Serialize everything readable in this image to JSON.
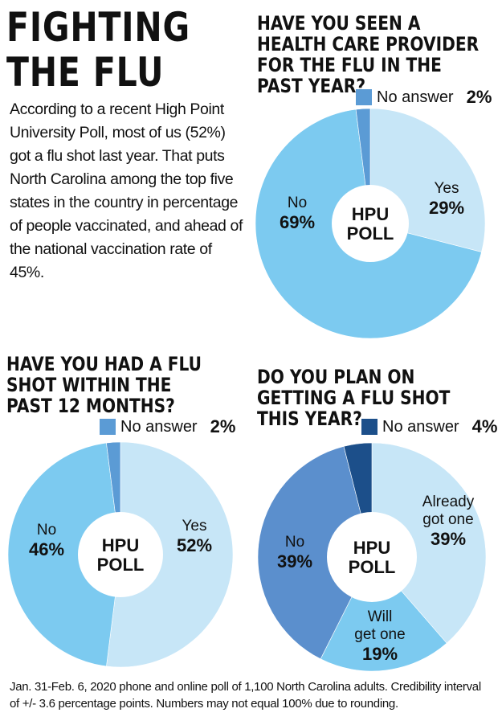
{
  "page": {
    "title": "FIGHTING THE FLU",
    "intro": "According to a recent High Point University Poll, most of us (52%) got a flu shot last year. That puts North Carolina among the top five states in the country in percentage of people vaccinated, and ahead of the national vaccination rate of 45%.",
    "footnote": "Jan. 31-Feb. 6, 2020 phone and online poll of 1,100 North Carolina adults. Credibility interval of +/- 3.6 percentage points. Numbers may not equal 100% due to rounding."
  },
  "chart_data": [
    {
      "type": "pie",
      "title": "HAVE YOU SEEN A HEALTH CARE PROVIDER FOR THE FLU IN THE PAST YEAR?",
      "center_label": [
        "HPU",
        "POLL"
      ],
      "legend": {
        "label": "No answer",
        "value": "2%",
        "color": "#5b9bd5"
      },
      "slices": [
        {
          "label": "Yes",
          "value": 29,
          "display": "29%",
          "color": "#c7e6f7"
        },
        {
          "label": "No",
          "value": 69,
          "display": "69%",
          "color": "#7ccaf0"
        },
        {
          "label": "No answer",
          "value": 2,
          "display": "2%",
          "color": "#5b9bd5"
        }
      ]
    },
    {
      "type": "pie",
      "title": "HAVE YOU HAD A FLU SHOT WITHIN THE PAST 12 MONTHS?",
      "center_label": [
        "HPU",
        "POLL"
      ],
      "legend": {
        "label": "No answer",
        "value": "2%",
        "color": "#5b9bd5"
      },
      "slices": [
        {
          "label": "Yes",
          "value": 52,
          "display": "52%",
          "color": "#c7e6f7"
        },
        {
          "label": "No",
          "value": 46,
          "display": "46%",
          "color": "#7ccaf0"
        },
        {
          "label": "No answer",
          "value": 2,
          "display": "2%",
          "color": "#5b9bd5"
        }
      ]
    },
    {
      "type": "pie",
      "title": "DO YOU PLAN ON GETTING A FLU SHOT THIS YEAR?",
      "center_label": [
        "HPU",
        "POLL"
      ],
      "legend": {
        "label": "No answer",
        "value": "4%",
        "color": "#1c4f8a"
      },
      "slices": [
        {
          "label": "Already got one",
          "value": 39,
          "display": "39%",
          "color": "#c7e6f7"
        },
        {
          "label": "Will get one",
          "value": 19,
          "display": "19%",
          "color": "#7ccaf0"
        },
        {
          "label": "No",
          "value": 39,
          "display": "39%",
          "color": "#5b8fcd"
        },
        {
          "label": "No answer",
          "value": 4,
          "display": "4%",
          "color": "#1c4f8a"
        }
      ]
    }
  ]
}
